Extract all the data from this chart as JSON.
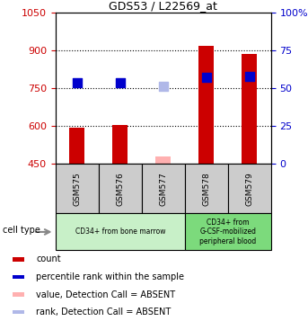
{
  "title": "GDS53 / L22569_at",
  "samples": [
    "GSM575",
    "GSM576",
    "GSM577",
    "GSM578",
    "GSM579"
  ],
  "bar_values": [
    595,
    605,
    null,
    920,
    888
  ],
  "bar_values_absent": [
    null,
    null,
    480,
    null,
    null
  ],
  "percentile_values": [
    772,
    773,
    null,
    795,
    797
  ],
  "percentile_values_absent": [
    null,
    null,
    757,
    null,
    null
  ],
  "ylim_left": [
    450,
    1050
  ],
  "ylim_right": [
    0,
    100
  ],
  "yticks_left": [
    450,
    600,
    750,
    900,
    1050
  ],
  "yticks_right": [
    0,
    25,
    50,
    75,
    100
  ],
  "cell_types": [
    {
      "label": "CD34+ from bone marrow",
      "samples": [
        0,
        1,
        2
      ],
      "color": "#c8f0c8"
    },
    {
      "label": "CD34+ from\nG-CSF-mobilized\nperipheral blood",
      "samples": [
        3,
        4
      ],
      "color": "#7cda7c"
    }
  ],
  "bar_color": "#cc0000",
  "bar_absent_color": "#ffb0b0",
  "dot_color": "#0000cc",
  "dot_absent_color": "#b0b8e8",
  "bar_width": 0.35,
  "dot_size": 55,
  "left_axis_color": "#cc0000",
  "right_axis_color": "#0000cc",
  "sample_box_color": "#cccccc",
  "legend_items": [
    {
      "label": "count",
      "color": "#cc0000"
    },
    {
      "label": "percentile rank within the sample",
      "color": "#0000cc"
    },
    {
      "label": "value, Detection Call = ABSENT",
      "color": "#ffb0b0"
    },
    {
      "label": "rank, Detection Call = ABSENT",
      "color": "#b0b8e8"
    }
  ],
  "cell_type_label": "cell type",
  "dotted_line_yticks": [
    600,
    750,
    900
  ],
  "fig_width": 3.43,
  "fig_height": 3.57
}
